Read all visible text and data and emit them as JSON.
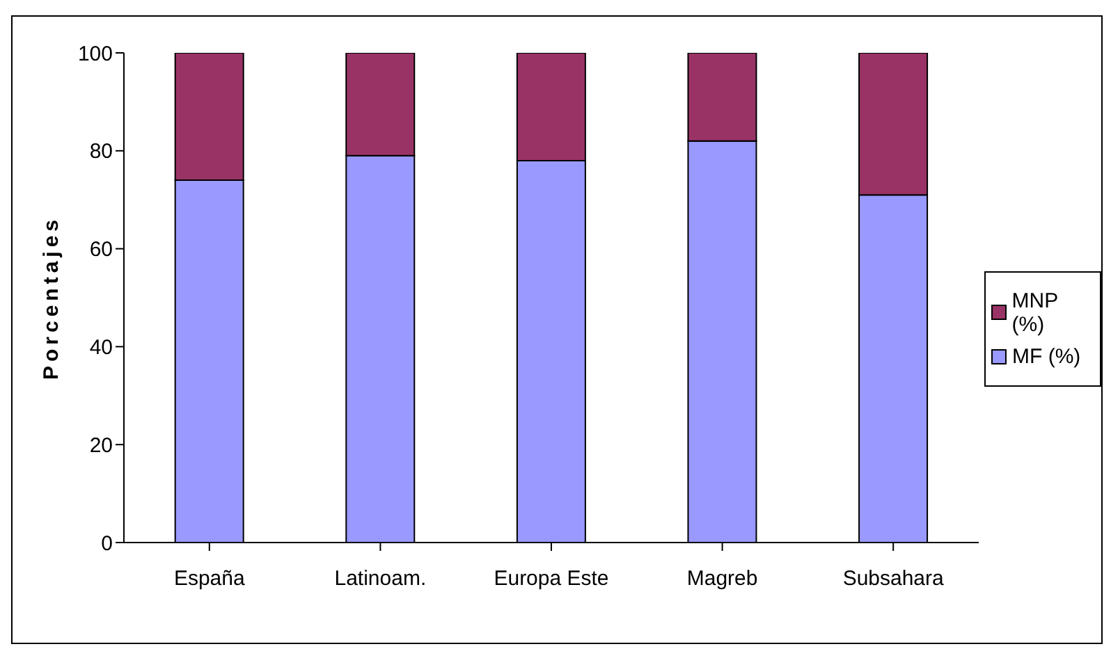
{
  "chart_data": {
    "type": "bar",
    "stacked": true,
    "ylabel": "Porcentajes",
    "categories": [
      "España",
      "Latinoam.",
      "Europa Este",
      "Magreb",
      "Subsahara"
    ],
    "series": [
      {
        "name": "MF (%)",
        "color": "#9999ff",
        "values": [
          74,
          79,
          78,
          82,
          71
        ]
      },
      {
        "name": "MNP (%)",
        "color": "#993366",
        "values": [
          26,
          21,
          22,
          18,
          29
        ]
      }
    ],
    "ylim": [
      0,
      100
    ],
    "yticks": [
      0,
      20,
      40,
      60,
      80,
      100
    ],
    "grid": false,
    "legend": "right"
  }
}
